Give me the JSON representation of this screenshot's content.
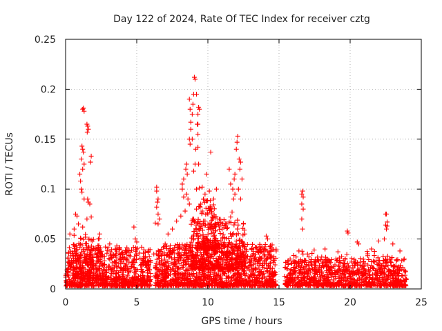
{
  "chart_data": {
    "type": "scatter",
    "title": "Day 122 of 2024, Rate Of TEC Index for receiver cztg",
    "xlabel": "GPS time / hours",
    "ylabel": "ROTI / TECUs",
    "xlim": [
      0,
      25
    ],
    "ylim": [
      0,
      0.25
    ],
    "x_ticks": [
      0,
      5,
      10,
      15,
      20,
      25
    ],
    "x_tick_labels": [
      "0",
      "5",
      "10",
      "15",
      "20",
      "25"
    ],
    "y_ticks": [
      0,
      0.05,
      0.1,
      0.15,
      0.2,
      0.25
    ],
    "y_tick_labels": [
      "0",
      "0.05",
      "0.1",
      "0.15",
      "0.2",
      "0.25"
    ],
    "grid": true,
    "marker": "plus",
    "color": "#ff0000",
    "series": [
      {
        "name": "ROTI",
        "points": [
          [
            1.2,
            0.18
          ],
          [
            1.25,
            0.181
          ],
          [
            1.3,
            0.178
          ],
          [
            1.5,
            0.165
          ],
          [
            1.55,
            0.163
          ],
          [
            1.6,
            0.16
          ],
          [
            1.52,
            0.157
          ],
          [
            1.15,
            0.143
          ],
          [
            1.2,
            0.14
          ],
          [
            1.25,
            0.137
          ],
          [
            1.1,
            0.13
          ],
          [
            1.3,
            0.125
          ],
          [
            1.2,
            0.12
          ],
          [
            1.8,
            0.133
          ],
          [
            1.75,
            0.127
          ],
          [
            1.0,
            0.115
          ],
          [
            1.05,
            0.108
          ],
          [
            1.1,
            0.1
          ],
          [
            1.15,
            0.097
          ],
          [
            1.3,
            0.09
          ],
          [
            1.55,
            0.09
          ],
          [
            1.6,
            0.087
          ],
          [
            1.7,
            0.085
          ],
          [
            0.7,
            0.075
          ],
          [
            0.8,
            0.073
          ],
          [
            1.5,
            0.07
          ],
          [
            1.8,
            0.072
          ],
          [
            0.9,
            0.065
          ],
          [
            1.2,
            0.062
          ],
          [
            0.6,
            0.06
          ],
          [
            0.3,
            0.055
          ],
          [
            2.4,
            0.055
          ],
          [
            2.3,
            0.05
          ],
          [
            1.9,
            0.048
          ],
          [
            2.8,
            0.042
          ],
          [
            3.1,
            0.045
          ],
          [
            3.5,
            0.04
          ],
          [
            3.6,
            0.043
          ],
          [
            4.3,
            0.035
          ],
          [
            4.8,
            0.062
          ],
          [
            5.0,
            0.047
          ],
          [
            4.9,
            0.05
          ],
          [
            5.5,
            0.03
          ],
          [
            6.2,
            0.035
          ],
          [
            6.3,
            0.066
          ],
          [
            6.4,
            0.102
          ],
          [
            6.4,
            0.098
          ],
          [
            6.5,
            0.09
          ],
          [
            6.45,
            0.087
          ],
          [
            6.4,
            0.082
          ],
          [
            6.5,
            0.075
          ],
          [
            6.6,
            0.07
          ],
          [
            6.5,
            0.065
          ],
          [
            7.0,
            0.045
          ],
          [
            7.2,
            0.055
          ],
          [
            7.5,
            0.06
          ],
          [
            7.8,
            0.068
          ],
          [
            8.2,
            0.1
          ],
          [
            8.3,
            0.092
          ],
          [
            8.5,
            0.095
          ],
          [
            8.6,
            0.09
          ],
          [
            8.7,
            0.085
          ],
          [
            8.4,
            0.078
          ],
          [
            8.1,
            0.073
          ],
          [
            8.5,
            0.125
          ],
          [
            8.45,
            0.12
          ],
          [
            8.55,
            0.115
          ],
          [
            8.3,
            0.11
          ],
          [
            8.2,
            0.105
          ],
          [
            8.9,
            0.15
          ],
          [
            8.75,
            0.145
          ],
          [
            8.7,
            0.15
          ],
          [
            8.8,
            0.16
          ],
          [
            8.8,
            0.167
          ],
          [
            8.75,
            0.18
          ],
          [
            8.7,
            0.19
          ],
          [
            8.9,
            0.175
          ],
          [
            8.95,
            0.185
          ],
          [
            9.0,
            0.195
          ],
          [
            9.05,
            0.212
          ],
          [
            9.1,
            0.21
          ],
          [
            9.2,
            0.195
          ],
          [
            9.3,
            0.175
          ],
          [
            9.35,
            0.182
          ],
          [
            9.4,
            0.18
          ],
          [
            9.15,
            0.14
          ],
          [
            9.3,
            0.155
          ],
          [
            9.25,
            0.165
          ],
          [
            9.3,
            0.165
          ],
          [
            9.3,
            0.142
          ],
          [
            9.1,
            0.125
          ],
          [
            9.35,
            0.125
          ],
          [
            9.0,
            0.118
          ],
          [
            9.2,
            0.1
          ],
          [
            9.4,
            0.101
          ],
          [
            9.6,
            0.102
          ],
          [
            9.8,
            0.095
          ],
          [
            10.1,
            0.098
          ],
          [
            9.7,
            0.09
          ],
          [
            9.5,
            0.085
          ],
          [
            9.9,
            0.088
          ],
          [
            9.2,
            0.08
          ],
          [
            9.6,
            0.078
          ],
          [
            10.0,
            0.075
          ],
          [
            10.2,
            0.08
          ],
          [
            9.0,
            0.07
          ],
          [
            9.8,
            0.068
          ],
          [
            10.3,
            0.072
          ],
          [
            10.5,
            0.065
          ],
          [
            10.6,
            0.1
          ],
          [
            10.4,
            0.09
          ],
          [
            10.2,
            0.137
          ],
          [
            9.9,
            0.115
          ],
          [
            11.0,
            0.06
          ],
          [
            11.3,
            0.065
          ],
          [
            11.5,
            0.067
          ],
          [
            11.6,
            0.072
          ],
          [
            11.7,
            0.077
          ],
          [
            11.8,
            0.09
          ],
          [
            11.9,
            0.095
          ],
          [
            11.75,
            0.1
          ],
          [
            11.85,
            0.11
          ],
          [
            11.5,
            0.12
          ],
          [
            11.6,
            0.105
          ],
          [
            11.9,
            0.115
          ],
          [
            12.0,
            0.14
          ],
          [
            12.05,
            0.147
          ],
          [
            12.1,
            0.153
          ],
          [
            12.2,
            0.13
          ],
          [
            12.3,
            0.127
          ],
          [
            12.25,
            0.12
          ],
          [
            12.4,
            0.11
          ],
          [
            12.15,
            0.1
          ],
          [
            12.3,
            0.09
          ],
          [
            12.5,
            0.065
          ],
          [
            12.6,
            0.055
          ],
          [
            13.1,
            0.04
          ],
          [
            14.1,
            0.053
          ],
          [
            14.2,
            0.05
          ],
          [
            14.8,
            0.038
          ],
          [
            16.2,
            0.032
          ],
          [
            16.6,
            0.095
          ],
          [
            16.65,
            0.098
          ],
          [
            16.7,
            0.092
          ],
          [
            16.6,
            0.085
          ],
          [
            16.7,
            0.08
          ],
          [
            16.6,
            0.07
          ],
          [
            16.65,
            0.06
          ],
          [
            16.4,
            0.038
          ],
          [
            17.0,
            0.035
          ],
          [
            18.0,
            0.032
          ],
          [
            19.0,
            0.03
          ],
          [
            19.8,
            0.058
          ],
          [
            19.85,
            0.056
          ],
          [
            20.5,
            0.047
          ],
          [
            20.6,
            0.045
          ],
          [
            21.5,
            0.04
          ],
          [
            22.0,
            0.048
          ],
          [
            22.4,
            0.05
          ],
          [
            22.5,
            0.075
          ],
          [
            22.55,
            0.075
          ],
          [
            22.6,
            0.067
          ],
          [
            22.5,
            0.064
          ],
          [
            22.6,
            0.063
          ],
          [
            22.55,
            0.06
          ],
          [
            23.0,
            0.045
          ],
          [
            23.5,
            0.038
          ],
          [
            23.8,
            0.03
          ]
        ]
      }
    ],
    "dense_bands": [
      {
        "x_range": [
          0,
          6.0
        ],
        "y_range": [
          0.003,
          0.042
        ],
        "count": 820
      },
      {
        "x_range": [
          0.5,
          2.5
        ],
        "y_range": [
          0.01,
          0.055
        ],
        "count": 160
      },
      {
        "x_range": [
          6.3,
          14.8
        ],
        "y_range": [
          0.003,
          0.045
        ],
        "count": 1250
      },
      {
        "x_range": [
          8.8,
          12.6
        ],
        "y_range": [
          0.02,
          0.07
        ],
        "count": 360
      },
      {
        "x_range": [
          9.2,
          10.6
        ],
        "y_range": [
          0.04,
          0.09
        ],
        "count": 130
      },
      {
        "x_range": [
          15.4,
          24.0
        ],
        "y_range": [
          0.003,
          0.03
        ],
        "count": 820
      },
      {
        "x_range": [
          16.0,
          23.5
        ],
        "y_range": [
          0.015,
          0.04
        ],
        "count": 130
      }
    ]
  }
}
